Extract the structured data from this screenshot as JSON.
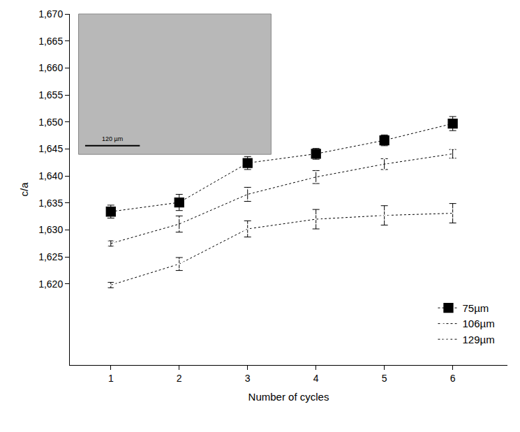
{
  "chart_data": {
    "type": "scatter",
    "x_label": "Number of cycles",
    "y_label": "c/a",
    "x": [
      1,
      2,
      3,
      4,
      5,
      6
    ],
    "series": [
      {
        "name": "75µm",
        "color": "#000000",
        "marker": "square",
        "line_style": "dot",
        "values": [
          1.6334,
          1.6351,
          1.6424,
          1.6441,
          1.6466,
          1.6497
        ],
        "error": [
          0.0012,
          0.0015,
          0.0012,
          0.001,
          0.001,
          0.0013
        ]
      },
      {
        "name": "106µm",
        "color": "#000000",
        "marker": "diamond-open",
        "line_style": "dot",
        "values": [
          1.6275,
          1.6311,
          1.6366,
          1.6398,
          1.6422,
          1.6441
        ],
        "error": [
          0.0005,
          0.0015,
          0.0013,
          0.0012,
          0.001,
          0.0008
        ]
      },
      {
        "name": "129µm",
        "color": "#000000",
        "marker": "circle-open-dot",
        "line_style": "dot",
        "values": [
          1.6198,
          1.6237,
          1.6302,
          1.632,
          1.6327,
          1.6331
        ],
        "error": [
          0.0005,
          0.0012,
          0.0015,
          0.0018,
          0.0018,
          0.0018
        ]
      }
    ],
    "xlim": [
      0.4,
      6.8
    ],
    "xticks": [
      1,
      2,
      3,
      4,
      5,
      6
    ],
    "ylim": [
      1.605,
      1.67
    ],
    "yticks": [
      {
        "value": 1.62,
        "label": "1,620"
      },
      {
        "value": 1.625,
        "label": "1,625"
      },
      {
        "value": 1.63,
        "label": "1,630"
      },
      {
        "value": 1.635,
        "label": "1,635"
      },
      {
        "value": 1.64,
        "label": "1,640"
      },
      {
        "value": 1.645,
        "label": "1,645"
      },
      {
        "value": 1.65,
        "label": "1,650"
      },
      {
        "value": 1.655,
        "label": "1,655"
      },
      {
        "value": 1.66,
        "label": "1,660"
      },
      {
        "value": 1.665,
        "label": "1,665"
      },
      {
        "value": 1.67,
        "label": "1,670"
      }
    ],
    "annotations": [
      {
        "text": "120 µm"
      }
    ],
    "grid": false,
    "legend": "bottom right"
  }
}
